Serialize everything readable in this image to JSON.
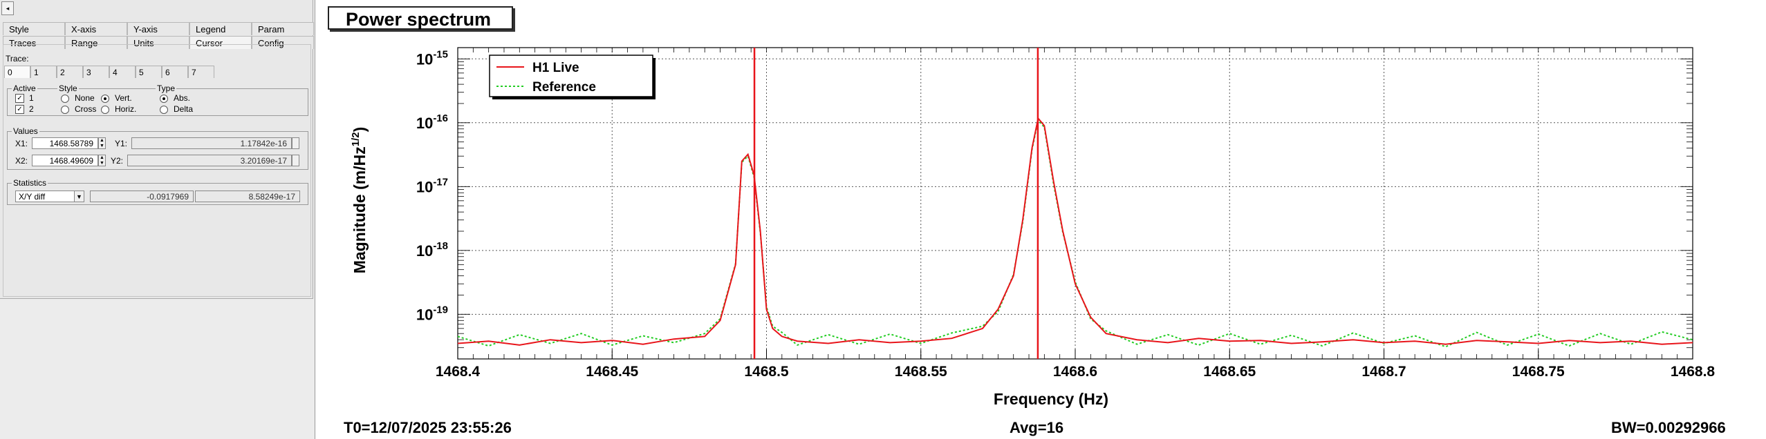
{
  "left_panel": {
    "top_button": "◂",
    "tabs_row1": [
      "Style",
      "X-axis",
      "Y-axis",
      "Legend",
      "Param"
    ],
    "tabs_row2": [
      "Traces",
      "Range",
      "Units",
      "Cursor",
      "Config"
    ],
    "trace_label": "Trace:",
    "trace_tabs": [
      "0",
      "1",
      "2",
      "3",
      "4",
      "5",
      "6",
      "7"
    ],
    "active": {
      "title": "Active",
      "items": [
        "1",
        "2"
      ]
    },
    "style": {
      "title": "Style",
      "options": [
        "None",
        "Vert.",
        "Cross",
        "Horiz."
      ]
    },
    "type": {
      "title": "Type",
      "options": [
        "Abs.",
        "Delta"
      ]
    },
    "values": {
      "title": "Values",
      "x1_label": "X1:",
      "x1": "1468.58789",
      "y1_label": "Y1:",
      "y1": "1.17842e-16",
      "x2_label": "X2:",
      "x2": "1468.49609",
      "y2_label": "Y2:",
      "y2": "3.20169e-17"
    },
    "statistics": {
      "title": "Statistics",
      "select": "X/Y diff",
      "dx": "-0.0917969",
      "dy": "8.58249e-17"
    }
  },
  "plot": {
    "title": "Power spectrum",
    "footer_left": "T0=12/07/2025 23:55:26",
    "footer_center": "Avg=16",
    "footer_right": "BW=0.00292966",
    "cursor_color": "#e8141a",
    "reference_color": "#22cc22"
  },
  "chart_data": {
    "type": "line",
    "xlabel": "Frequency (Hz)",
    "ylabel": "Magnitude (m/Hz1/2)",
    "xlim": [
      1468.4,
      1468.8
    ],
    "ylim": [
      2e-20,
      1.5e-15
    ],
    "yscale": "log",
    "grid": true,
    "legend_position": "top-left",
    "x_ticks": [
      "1468.4",
      "1468.45",
      "1468.5",
      "1468.55",
      "1468.6",
      "1468.65",
      "1468.7",
      "1468.75",
      "1468.8"
    ],
    "y_ticks": [
      {
        "base": "10",
        "exp": "-15"
      },
      {
        "base": "10",
        "exp": "-16"
      },
      {
        "base": "10",
        "exp": "-17"
      },
      {
        "base": "10",
        "exp": "-18"
      },
      {
        "base": "10",
        "exp": "-19"
      }
    ],
    "cursors": [
      1468.49609,
      1468.58789
    ],
    "series": [
      {
        "name": "H1 Live",
        "color": "#e8141a",
        "style": "solid",
        "x": [
          1468.4,
          1468.41,
          1468.42,
          1468.43,
          1468.44,
          1468.45,
          1468.46,
          1468.47,
          1468.48,
          1468.485,
          1468.49,
          1468.492,
          1468.494,
          1468.496,
          1468.498,
          1468.5,
          1468.502,
          1468.505,
          1468.51,
          1468.52,
          1468.53,
          1468.54,
          1468.55,
          1468.56,
          1468.57,
          1468.575,
          1468.58,
          1468.583,
          1468.586,
          1468.588,
          1468.59,
          1468.593,
          1468.596,
          1468.6,
          1468.605,
          1468.61,
          1468.62,
          1468.63,
          1468.64,
          1468.65,
          1468.66,
          1468.67,
          1468.68,
          1468.69,
          1468.7,
          1468.71,
          1468.72,
          1468.73,
          1468.74,
          1468.75,
          1468.76,
          1468.77,
          1468.78,
          1468.79,
          1468.8
        ],
        "y": [
          3.5e-20,
          3.8e-20,
          3.3e-20,
          4e-20,
          3.6e-20,
          3.9e-20,
          3.4e-20,
          4.1e-20,
          4.5e-20,
          8e-20,
          6e-19,
          2.5e-17,
          3.2e-17,
          1.5e-17,
          2e-18,
          1.2e-19,
          6e-20,
          4.5e-20,
          3.8e-20,
          3.5e-20,
          4e-20,
          3.6e-20,
          3.8e-20,
          4.2e-20,
          6e-20,
          1.2e-19,
          4e-19,
          3e-18,
          4e-17,
          1.17e-16,
          9e-17,
          1.2e-17,
          2e-18,
          3e-19,
          9e-20,
          5e-20,
          4e-20,
          3.6e-20,
          4.2e-20,
          3.8e-20,
          3.9e-20,
          3.5e-20,
          3.7e-20,
          4e-20,
          3.6e-20,
          3.8e-20,
          3.4e-20,
          3.9e-20,
          3.7e-20,
          3.5e-20,
          3.9e-20,
          3.6e-20,
          3.8e-20,
          3.4e-20,
          3.6e-20
        ]
      },
      {
        "name": "Reference",
        "color": "#22cc22",
        "style": "dotted",
        "x": [
          1468.4,
          1468.41,
          1468.42,
          1468.43,
          1468.44,
          1468.45,
          1468.46,
          1468.47,
          1468.48,
          1468.485,
          1468.49,
          1468.492,
          1468.494,
          1468.496,
          1468.498,
          1468.5,
          1468.502,
          1468.505,
          1468.51,
          1468.52,
          1468.53,
          1468.54,
          1468.55,
          1468.56,
          1468.57,
          1468.575,
          1468.58,
          1468.583,
          1468.586,
          1468.588,
          1468.59,
          1468.593,
          1468.596,
          1468.6,
          1468.605,
          1468.61,
          1468.62,
          1468.63,
          1468.64,
          1468.65,
          1468.66,
          1468.67,
          1468.68,
          1468.69,
          1468.7,
          1468.71,
          1468.72,
          1468.73,
          1468.74,
          1468.75,
          1468.76,
          1468.77,
          1468.78,
          1468.79,
          1468.8
        ],
        "y": [
          4.5e-20,
          3.2e-20,
          4.8e-20,
          3.5e-20,
          5e-20,
          3.3e-20,
          4.6e-20,
          3.6e-20,
          5e-20,
          8.5e-20,
          6.2e-19,
          2.4e-17,
          3e-17,
          1.4e-17,
          1.9e-18,
          1.3e-19,
          6.5e-20,
          5.2e-20,
          3.3e-20,
          4.8e-20,
          3.4e-20,
          4.9e-20,
          3.5e-20,
          5.1e-20,
          6.5e-20,
          1.1e-19,
          4.2e-19,
          2.8e-18,
          3.8e-17,
          1.1e-16,
          8.5e-17,
          1.1e-17,
          1.9e-18,
          3.2e-19,
          8.5e-20,
          5.5e-20,
          3.4e-20,
          4.8e-20,
          3.3e-20,
          5e-20,
          3.4e-20,
          4.7e-20,
          3.2e-20,
          5.1e-20,
          3.5e-20,
          4.6e-20,
          3.1e-20,
          5.2e-20,
          3.3e-20,
          4.9e-20,
          3.2e-20,
          5e-20,
          3.4e-20,
          5.3e-20,
          4e-20
        ]
      }
    ]
  }
}
